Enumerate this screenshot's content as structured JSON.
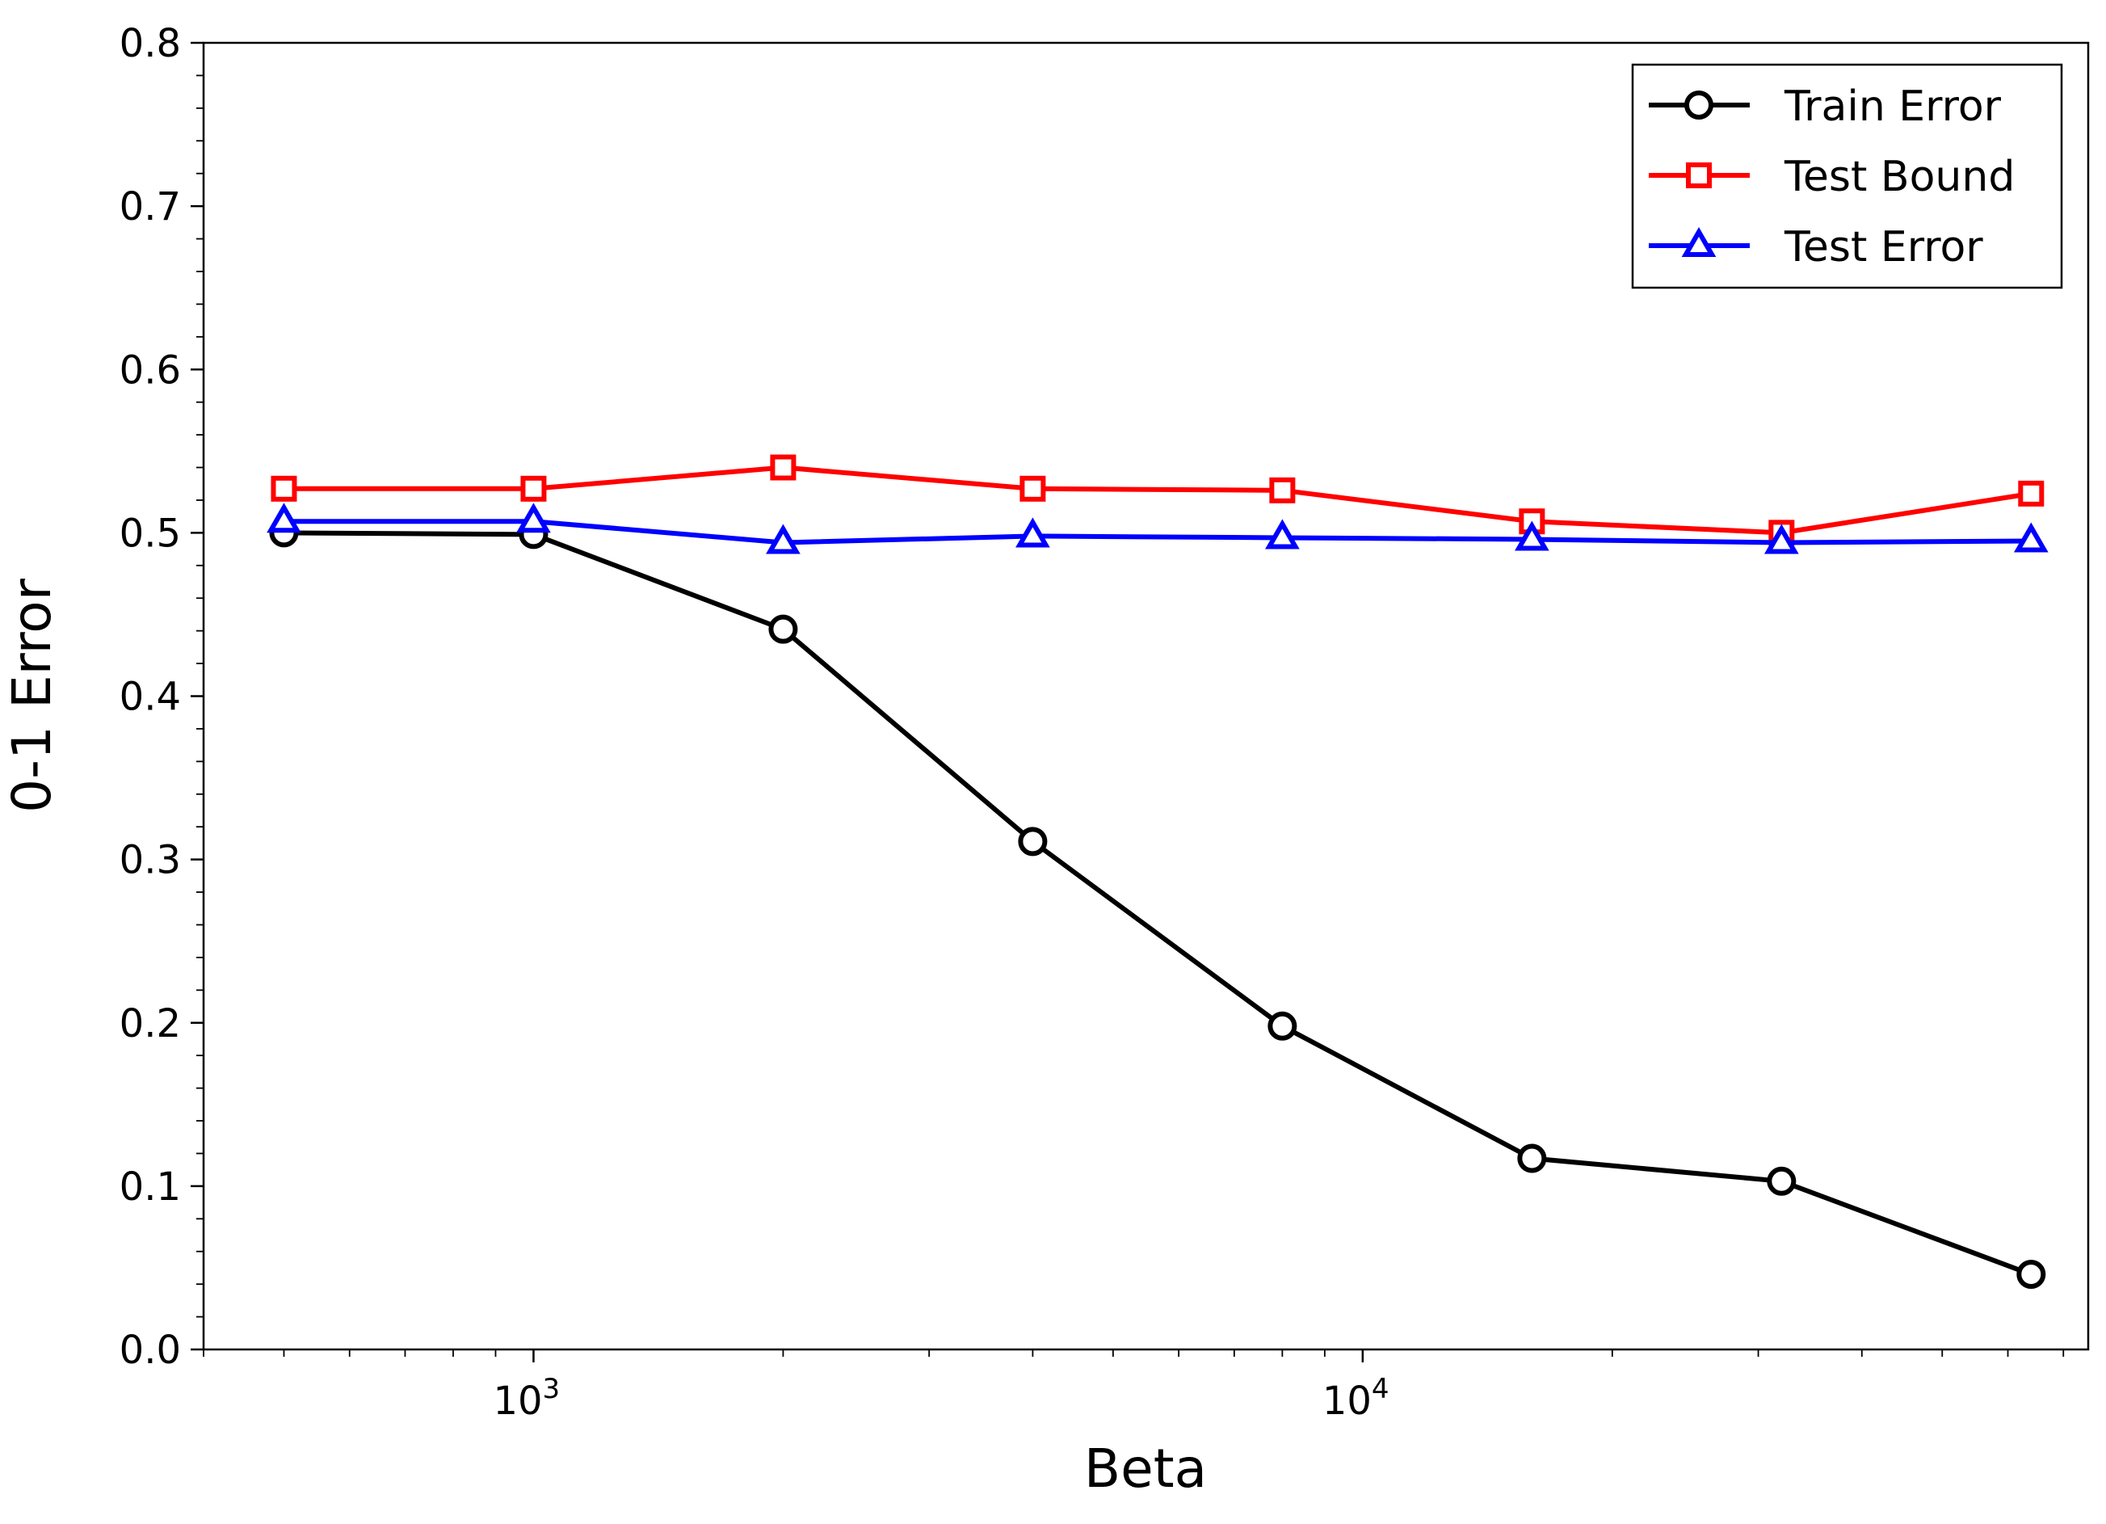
{
  "chart_data": {
    "type": "line",
    "xlabel": "Beta",
    "ylabel": "0-1 Error",
    "xscale": "log",
    "xlim": [
      400,
      75000
    ],
    "ylim": [
      0.0,
      0.8
    ],
    "x": [
      500,
      1000,
      2000,
      4000,
      8000,
      16000,
      32000,
      64000
    ],
    "x_tick_labels": [
      {
        "value": 1000,
        "base": "10",
        "exp": "3"
      },
      {
        "value": 10000,
        "base": "10",
        "exp": "4"
      }
    ],
    "y_ticks": [
      0.0,
      0.1,
      0.2,
      0.3,
      0.4,
      0.5,
      0.6,
      0.7,
      0.8
    ],
    "y_tick_labels": [
      "0.0",
      "0.1",
      "0.2",
      "0.3",
      "0.4",
      "0.5",
      "0.6",
      "0.7",
      "0.8"
    ],
    "grid": false,
    "legend": {
      "position": "top-right"
    },
    "series": [
      {
        "name": "Train Error",
        "color": "#000000",
        "marker": "circle",
        "values": [
          0.5,
          0.499,
          0.441,
          0.311,
          0.198,
          0.117,
          0.103,
          0.046
        ]
      },
      {
        "name": "Test Bound",
        "color": "#ff0000",
        "marker": "square",
        "values": [
          0.527,
          0.527,
          0.54,
          0.527,
          0.526,
          0.507,
          0.5,
          0.524
        ]
      },
      {
        "name": "Test Error",
        "color": "#0000ff",
        "marker": "triangle",
        "values": [
          0.507,
          0.507,
          0.494,
          0.498,
          0.497,
          0.496,
          0.494,
          0.495
        ]
      }
    ]
  }
}
